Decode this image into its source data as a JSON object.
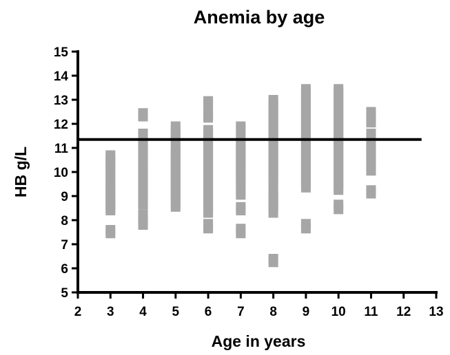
{
  "chart_data": {
    "type": "scatter",
    "title": "Anemia by age",
    "xlabel": "Age in years",
    "ylabel": "HB g/L",
    "xlim": [
      2,
      13
    ],
    "ylim": [
      5,
      15
    ],
    "xticks": [
      "2",
      "3",
      "4",
      "5",
      "6",
      "7",
      "8",
      "9",
      "10",
      "11",
      "12",
      "13"
    ],
    "yticks": [
      "5",
      "6",
      "7",
      "8",
      "9",
      "10",
      "11",
      "12",
      "13",
      "14",
      "15"
    ],
    "grid": false,
    "marker_color": "#a6a6a6",
    "reference_line": {
      "y": 11.35,
      "x_start": 2,
      "x_end": 12.55,
      "color": "#000000"
    },
    "points": [
      {
        "x": 3,
        "y": 10.7
      },
      {
        "x": 3,
        "y": 10.55
      },
      {
        "x": 3,
        "y": 10.4
      },
      {
        "x": 3,
        "y": 10.25
      },
      {
        "x": 3,
        "y": 10.1
      },
      {
        "x": 3,
        "y": 9.95
      },
      {
        "x": 3,
        "y": 9.7
      },
      {
        "x": 3,
        "y": 9.55
      },
      {
        "x": 3,
        "y": 9.4
      },
      {
        "x": 3,
        "y": 9.25
      },
      {
        "x": 3,
        "y": 9.1
      },
      {
        "x": 3,
        "y": 8.95
      },
      {
        "x": 3,
        "y": 8.8
      },
      {
        "x": 3,
        "y": 8.65
      },
      {
        "x": 3,
        "y": 8.5
      },
      {
        "x": 3,
        "y": 8.4
      },
      {
        "x": 3,
        "y": 7.6
      },
      {
        "x": 3,
        "y": 7.45
      },
      {
        "x": 4,
        "y": 12.45
      },
      {
        "x": 4,
        "y": 12.3
      },
      {
        "x": 4,
        "y": 11.6
      },
      {
        "x": 4,
        "y": 11.45
      },
      {
        "x": 4,
        "y": 11.3
      },
      {
        "x": 4,
        "y": 11.15
      },
      {
        "x": 4,
        "y": 11.0
      },
      {
        "x": 4,
        "y": 10.85
      },
      {
        "x": 4,
        "y": 10.7
      },
      {
        "x": 4,
        "y": 10.55
      },
      {
        "x": 4,
        "y": 10.4
      },
      {
        "x": 4,
        "y": 10.25
      },
      {
        "x": 4,
        "y": 10.1
      },
      {
        "x": 4,
        "y": 9.95
      },
      {
        "x": 4,
        "y": 9.8
      },
      {
        "x": 4,
        "y": 9.65
      },
      {
        "x": 4,
        "y": 9.5
      },
      {
        "x": 4,
        "y": 9.35
      },
      {
        "x": 4,
        "y": 9.2
      },
      {
        "x": 4,
        "y": 9.05
      },
      {
        "x": 4,
        "y": 8.9
      },
      {
        "x": 4,
        "y": 8.75
      },
      {
        "x": 4,
        "y": 8.65
      },
      {
        "x": 4,
        "y": 8.25
      },
      {
        "x": 4,
        "y": 8.1
      },
      {
        "x": 4,
        "y": 7.95
      },
      {
        "x": 4,
        "y": 7.8
      },
      {
        "x": 5,
        "y": 11.9
      },
      {
        "x": 5,
        "y": 11.75
      },
      {
        "x": 5,
        "y": 11.6
      },
      {
        "x": 5,
        "y": 11.45
      },
      {
        "x": 5,
        "y": 11.3
      },
      {
        "x": 5,
        "y": 11.0
      },
      {
        "x": 5,
        "y": 10.85
      },
      {
        "x": 5,
        "y": 10.7
      },
      {
        "x": 5,
        "y": 10.55
      },
      {
        "x": 5,
        "y": 10.4
      },
      {
        "x": 5,
        "y": 10.25
      },
      {
        "x": 5,
        "y": 10.1
      },
      {
        "x": 5,
        "y": 9.95
      },
      {
        "x": 5,
        "y": 9.8
      },
      {
        "x": 5,
        "y": 9.65
      },
      {
        "x": 5,
        "y": 9.5
      },
      {
        "x": 5,
        "y": 9.35
      },
      {
        "x": 5,
        "y": 9.2
      },
      {
        "x": 5,
        "y": 9.05
      },
      {
        "x": 5,
        "y": 8.95
      },
      {
        "x": 5,
        "y": 8.7
      },
      {
        "x": 5,
        "y": 8.55
      },
      {
        "x": 6,
        "y": 12.95
      },
      {
        "x": 6,
        "y": 12.8
      },
      {
        "x": 6,
        "y": 12.4
      },
      {
        "x": 6,
        "y": 12.25
      },
      {
        "x": 6,
        "y": 11.75
      },
      {
        "x": 6,
        "y": 11.6
      },
      {
        "x": 6,
        "y": 11.45
      },
      {
        "x": 6,
        "y": 11.3
      },
      {
        "x": 6,
        "y": 11.15
      },
      {
        "x": 6,
        "y": 11.0
      },
      {
        "x": 6,
        "y": 10.85
      },
      {
        "x": 6,
        "y": 10.7
      },
      {
        "x": 6,
        "y": 10.55
      },
      {
        "x": 6,
        "y": 10.4
      },
      {
        "x": 6,
        "y": 10.25
      },
      {
        "x": 6,
        "y": 10.1
      },
      {
        "x": 6,
        "y": 9.95
      },
      {
        "x": 6,
        "y": 9.8
      },
      {
        "x": 6,
        "y": 9.65
      },
      {
        "x": 6,
        "y": 9.5
      },
      {
        "x": 6,
        "y": 9.35
      },
      {
        "x": 6,
        "y": 9.2
      },
      {
        "x": 6,
        "y": 9.05
      },
      {
        "x": 6,
        "y": 8.9
      },
      {
        "x": 6,
        "y": 8.75
      },
      {
        "x": 6,
        "y": 8.6
      },
      {
        "x": 6,
        "y": 8.45
      },
      {
        "x": 6,
        "y": 8.3
      },
      {
        "x": 6,
        "y": 7.85
      },
      {
        "x": 6,
        "y": 7.65
      },
      {
        "x": 7,
        "y": 11.9
      },
      {
        "x": 7,
        "y": 11.75
      },
      {
        "x": 7,
        "y": 11.4
      },
      {
        "x": 7,
        "y": 11.25
      },
      {
        "x": 7,
        "y": 11.1
      },
      {
        "x": 7,
        "y": 10.95
      },
      {
        "x": 7,
        "y": 10.8
      },
      {
        "x": 7,
        "y": 10.65
      },
      {
        "x": 7,
        "y": 10.5
      },
      {
        "x": 7,
        "y": 10.35
      },
      {
        "x": 7,
        "y": 10.2
      },
      {
        "x": 7,
        "y": 10.05
      },
      {
        "x": 7,
        "y": 9.9
      },
      {
        "x": 7,
        "y": 9.75
      },
      {
        "x": 7,
        "y": 9.6
      },
      {
        "x": 7,
        "y": 9.45
      },
      {
        "x": 7,
        "y": 9.2
      },
      {
        "x": 7,
        "y": 9.05
      },
      {
        "x": 7,
        "y": 8.55
      },
      {
        "x": 7,
        "y": 8.4
      },
      {
        "x": 7,
        "y": 7.65
      },
      {
        "x": 7,
        "y": 7.45
      },
      {
        "x": 8,
        "y": 13.0
      },
      {
        "x": 8,
        "y": 12.85
      },
      {
        "x": 8,
        "y": 12.7
      },
      {
        "x": 8,
        "y": 12.55
      },
      {
        "x": 8,
        "y": 12.4
      },
      {
        "x": 8,
        "y": 12.25
      },
      {
        "x": 8,
        "y": 12.1
      },
      {
        "x": 8,
        "y": 11.95
      },
      {
        "x": 8,
        "y": 11.8
      },
      {
        "x": 8,
        "y": 11.65
      },
      {
        "x": 8,
        "y": 11.5
      },
      {
        "x": 8,
        "y": 11.35
      },
      {
        "x": 8,
        "y": 11.2
      },
      {
        "x": 8,
        "y": 11.05
      },
      {
        "x": 8,
        "y": 10.9
      },
      {
        "x": 8,
        "y": 10.75
      },
      {
        "x": 8,
        "y": 10.6
      },
      {
        "x": 8,
        "y": 10.45
      },
      {
        "x": 8,
        "y": 10.3
      },
      {
        "x": 8,
        "y": 10.15
      },
      {
        "x": 8,
        "y": 10.0
      },
      {
        "x": 8,
        "y": 9.85
      },
      {
        "x": 8,
        "y": 9.7
      },
      {
        "x": 8,
        "y": 9.55
      },
      {
        "x": 8,
        "y": 9.25
      },
      {
        "x": 8,
        "y": 9.1
      },
      {
        "x": 8,
        "y": 8.95
      },
      {
        "x": 8,
        "y": 8.8
      },
      {
        "x": 8,
        "y": 8.65
      },
      {
        "x": 8,
        "y": 8.5
      },
      {
        "x": 8,
        "y": 8.3
      },
      {
        "x": 8,
        "y": 6.4
      },
      {
        "x": 8,
        "y": 6.25
      },
      {
        "x": 9,
        "y": 13.45
      },
      {
        "x": 9,
        "y": 13.3
      },
      {
        "x": 9,
        "y": 13.15
      },
      {
        "x": 9,
        "y": 13.0
      },
      {
        "x": 9,
        "y": 12.85
      },
      {
        "x": 9,
        "y": 12.7
      },
      {
        "x": 9,
        "y": 12.55
      },
      {
        "x": 9,
        "y": 12.4
      },
      {
        "x": 9,
        "y": 12.25
      },
      {
        "x": 9,
        "y": 12.1
      },
      {
        "x": 9,
        "y": 11.95
      },
      {
        "x": 9,
        "y": 11.8
      },
      {
        "x": 9,
        "y": 11.65
      },
      {
        "x": 9,
        "y": 11.5
      },
      {
        "x": 9,
        "y": 11.35
      },
      {
        "x": 9,
        "y": 11.2
      },
      {
        "x": 9,
        "y": 11.05
      },
      {
        "x": 9,
        "y": 10.9
      },
      {
        "x": 9,
        "y": 10.75
      },
      {
        "x": 9,
        "y": 10.6
      },
      {
        "x": 9,
        "y": 10.45
      },
      {
        "x": 9,
        "y": 10.3
      },
      {
        "x": 9,
        "y": 10.15
      },
      {
        "x": 9,
        "y": 10.0
      },
      {
        "x": 9,
        "y": 9.85
      },
      {
        "x": 9,
        "y": 9.7
      },
      {
        "x": 9,
        "y": 9.55
      },
      {
        "x": 9,
        "y": 9.35
      },
      {
        "x": 9,
        "y": 7.85
      },
      {
        "x": 9,
        "y": 7.65
      },
      {
        "x": 10,
        "y": 13.45
      },
      {
        "x": 10,
        "y": 13.3
      },
      {
        "x": 10,
        "y": 13.15
      },
      {
        "x": 10,
        "y": 13.0
      },
      {
        "x": 10,
        "y": 12.85
      },
      {
        "x": 10,
        "y": 12.7
      },
      {
        "x": 10,
        "y": 12.55
      },
      {
        "x": 10,
        "y": 12.4
      },
      {
        "x": 10,
        "y": 12.25
      },
      {
        "x": 10,
        "y": 12.1
      },
      {
        "x": 10,
        "y": 11.95
      },
      {
        "x": 10,
        "y": 11.8
      },
      {
        "x": 10,
        "y": 11.65
      },
      {
        "x": 10,
        "y": 11.5
      },
      {
        "x": 10,
        "y": 11.35
      },
      {
        "x": 10,
        "y": 11.2
      },
      {
        "x": 10,
        "y": 11.05
      },
      {
        "x": 10,
        "y": 10.9
      },
      {
        "x": 10,
        "y": 10.75
      },
      {
        "x": 10,
        "y": 10.6
      },
      {
        "x": 10,
        "y": 10.45
      },
      {
        "x": 10,
        "y": 10.3
      },
      {
        "x": 10,
        "y": 10.15
      },
      {
        "x": 10,
        "y": 10.0
      },
      {
        "x": 10,
        "y": 9.85
      },
      {
        "x": 10,
        "y": 9.7
      },
      {
        "x": 10,
        "y": 9.55
      },
      {
        "x": 10,
        "y": 9.4
      },
      {
        "x": 10,
        "y": 9.25
      },
      {
        "x": 10,
        "y": 8.65
      },
      {
        "x": 10,
        "y": 8.45
      },
      {
        "x": 11,
        "y": 12.5
      },
      {
        "x": 11,
        "y": 12.35
      },
      {
        "x": 11,
        "y": 12.2
      },
      {
        "x": 11,
        "y": 12.05
      },
      {
        "x": 11,
        "y": 11.6
      },
      {
        "x": 11,
        "y": 11.45
      },
      {
        "x": 11,
        "y": 11.3
      },
      {
        "x": 11,
        "y": 11.15
      },
      {
        "x": 11,
        "y": 11.0
      },
      {
        "x": 11,
        "y": 10.85
      },
      {
        "x": 11,
        "y": 10.7
      },
      {
        "x": 11,
        "y": 10.55
      },
      {
        "x": 11,
        "y": 10.4
      },
      {
        "x": 11,
        "y": 10.25
      },
      {
        "x": 11,
        "y": 10.05
      },
      {
        "x": 11,
        "y": 9.25
      },
      {
        "x": 11,
        "y": 9.1
      }
    ]
  }
}
